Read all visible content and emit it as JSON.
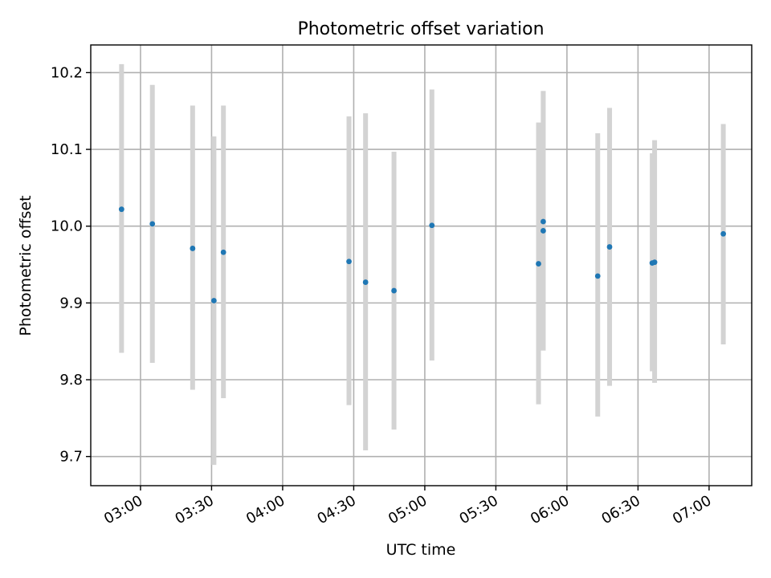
{
  "chart_data": {
    "type": "scatter",
    "title": "Photometric offset variation",
    "xlabel": "UTC time",
    "ylabel": "Photometric offset",
    "grid": true,
    "x_axis_kind": "time",
    "xlim": [
      "02:39",
      "07:18"
    ],
    "ylim": [
      9.662,
      10.236
    ],
    "x_ticks": [
      "03:00",
      "03:30",
      "04:00",
      "04:30",
      "05:00",
      "05:30",
      "06:00",
      "06:30",
      "07:00"
    ],
    "y_ticks": [
      9.7,
      9.8,
      9.9,
      10.0,
      10.1,
      10.2
    ],
    "y_tick_labels": [
      "9.7",
      "9.8",
      "9.9",
      "10.0",
      "10.1",
      "10.2"
    ],
    "colors": {
      "point": "#1f77b4",
      "errorbar": "#d3d3d3",
      "grid": "#b0b0b0",
      "axis": "#000000"
    },
    "series": [
      {
        "points": [
          {
            "x": "02:52",
            "y": 10.022,
            "ylow": 9.835,
            "yhigh": 10.211
          },
          {
            "x": "03:05",
            "y": 10.003,
            "ylow": 9.822,
            "yhigh": 10.184
          },
          {
            "x": "03:22",
            "y": 9.971,
            "ylow": 9.787,
            "yhigh": 10.157
          },
          {
            "x": "03:31",
            "y": 9.903,
            "ylow": 9.689,
            "yhigh": 10.117
          },
          {
            "x": "03:35",
            "y": 9.966,
            "ylow": 9.776,
            "yhigh": 10.157
          },
          {
            "x": "04:28",
            "y": 9.954,
            "ylow": 9.767,
            "yhigh": 10.143
          },
          {
            "x": "04:35",
            "y": 9.927,
            "ylow": 9.708,
            "yhigh": 10.147
          },
          {
            "x": "04:47",
            "y": 9.916,
            "ylow": 9.735,
            "yhigh": 10.097
          },
          {
            "x": "05:03",
            "y": 10.001,
            "ylow": 9.825,
            "yhigh": 10.178
          },
          {
            "x": "05:48",
            "y": 9.951,
            "ylow": 9.768,
            "yhigh": 10.135
          },
          {
            "x": "05:50",
            "y": 10.006,
            "ylow": 9.838,
            "yhigh": 10.176
          },
          {
            "x": "05:50",
            "y": 9.994,
            "ylow": 9.838,
            "yhigh": 10.176
          },
          {
            "x": "06:13",
            "y": 9.935,
            "ylow": 9.752,
            "yhigh": 10.121
          },
          {
            "x": "06:18",
            "y": 9.973,
            "ylow": 9.792,
            "yhigh": 10.154
          },
          {
            "x": "06:36",
            "y": 9.952,
            "ylow": 9.811,
            "yhigh": 10.095
          },
          {
            "x": "06:37",
            "y": 9.953,
            "ylow": 9.796,
            "yhigh": 10.112
          },
          {
            "x": "07:06",
            "y": 9.99,
            "ylow": 9.846,
            "yhigh": 10.133
          }
        ]
      }
    ]
  }
}
